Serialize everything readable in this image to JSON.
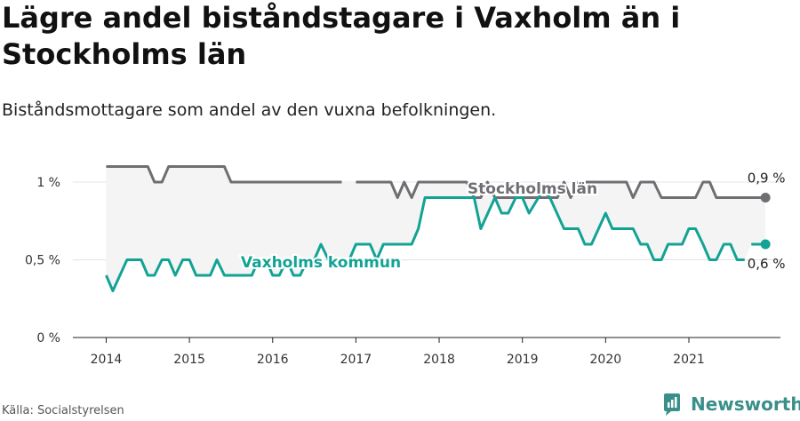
{
  "title": "Lägre andel biståndstagare i Vaxholm än i Stockholms län",
  "subtitle": "Biståndsmottagare som andel av den vuxna befolkningen.",
  "source": "Källa: Socialstyrelsen",
  "brand": {
    "name": "Newsworthy",
    "icon": "newsworthy-logo-icon",
    "color": "#3a8f8a"
  },
  "chart_data": {
    "type": "line",
    "title": "Lägre andel biståndstagare i Vaxholm än i Stockholms län",
    "subtitle": "Biståndsmottagare som andel av den vuxna befolkningen.",
    "xlabel": "",
    "ylabel": "",
    "ylim": [
      0,
      1.2
    ],
    "xlim": [
      2013.6,
      2022.1
    ],
    "x_ticks": [
      2014,
      2015,
      2016,
      2017,
      2018,
      2019,
      2020,
      2021
    ],
    "x_tick_labels": [
      "2014",
      "2015",
      "2016",
      "2017",
      "2018",
      "2019",
      "2020",
      "2021"
    ],
    "y_ticks": [
      0,
      0.5,
      1
    ],
    "y_tick_labels": [
      "0 %",
      "0,5 %",
      "1 %"
    ],
    "grid": "horizontal",
    "series": [
      {
        "name": "Stockholms län",
        "color": "#6f6e73",
        "end_label": "0,9 %",
        "points": [
          [
            2014.0,
            1.1
          ],
          [
            2014.5,
            1.1
          ],
          [
            2014.58,
            1.0
          ],
          [
            2014.67,
            1.0
          ],
          [
            2014.75,
            1.1
          ],
          [
            2015.42,
            1.1
          ],
          [
            2015.5,
            1.0
          ],
          [
            2016.83,
            1.0
          ],
          null,
          [
            2017.0,
            1.0
          ],
          [
            2017.42,
            1.0
          ],
          [
            2017.5,
            0.9
          ],
          [
            2017.58,
            1.0
          ],
          [
            2017.67,
            0.9
          ],
          [
            2017.75,
            1.0
          ],
          [
            2018.33,
            1.0
          ],
          [
            2018.42,
            0.9
          ],
          [
            2018.5,
            0.9
          ],
          [
            2018.58,
            1.0
          ],
          [
            2018.67,
            0.9
          ],
          [
            2019.42,
            0.9
          ],
          [
            2019.5,
            1.0
          ],
          [
            2019.58,
            0.9
          ],
          [
            2019.67,
            1.0
          ],
          [
            2020.25,
            1.0
          ],
          [
            2020.33,
            0.9
          ],
          [
            2020.42,
            1.0
          ],
          [
            2020.58,
            1.0
          ],
          [
            2020.67,
            0.9
          ],
          [
            2021.08,
            0.9
          ],
          [
            2021.17,
            1.0
          ],
          [
            2021.25,
            1.0
          ],
          [
            2021.33,
            0.9
          ],
          [
            2021.92,
            0.9
          ]
        ]
      },
      {
        "name": "Vaxholms kommun",
        "color": "#12a395",
        "end_label": "0,6 %",
        "points": [
          [
            2014.0,
            0.4
          ],
          [
            2014.08,
            0.3
          ],
          [
            2014.25,
            0.5
          ],
          [
            2014.42,
            0.5
          ],
          [
            2014.5,
            0.4
          ],
          [
            2014.58,
            0.4
          ],
          [
            2014.67,
            0.5
          ],
          [
            2014.75,
            0.5
          ],
          [
            2014.83,
            0.4
          ],
          [
            2014.92,
            0.5
          ],
          [
            2015.0,
            0.5
          ],
          [
            2015.08,
            0.4
          ],
          [
            2015.25,
            0.4
          ],
          [
            2015.33,
            0.5
          ],
          [
            2015.42,
            0.4
          ],
          [
            2015.75,
            0.4
          ],
          [
            2015.83,
            0.5
          ],
          [
            2015.92,
            0.5
          ],
          [
            2016.0,
            0.4
          ],
          [
            2016.08,
            0.4
          ],
          [
            2016.17,
            0.5
          ],
          [
            2016.25,
            0.4
          ],
          [
            2016.33,
            0.4
          ],
          [
            2016.42,
            0.5
          ],
          [
            2016.5,
            0.5
          ],
          [
            2016.58,
            0.6
          ],
          [
            2016.67,
            0.5
          ],
          [
            2016.83,
            0.5
          ],
          null,
          [
            2016.92,
            0.5
          ],
          [
            2017.0,
            0.6
          ],
          [
            2017.17,
            0.6
          ],
          [
            2017.25,
            0.5
          ],
          [
            2017.33,
            0.6
          ],
          [
            2017.67,
            0.6
          ],
          [
            2017.75,
            0.7
          ],
          [
            2017.83,
            0.9
          ],
          [
            2018.42,
            0.9
          ],
          [
            2018.5,
            0.7
          ],
          [
            2018.67,
            0.9
          ],
          [
            2018.75,
            0.8
          ],
          [
            2018.83,
            0.8
          ],
          [
            2018.92,
            0.9
          ],
          [
            2019.0,
            0.9
          ],
          [
            2019.08,
            0.8
          ],
          [
            2019.25,
            0.95
          ],
          [
            2019.33,
            0.9
          ],
          [
            2019.5,
            0.7
          ],
          [
            2019.67,
            0.7
          ],
          [
            2019.75,
            0.6
          ],
          [
            2019.83,
            0.6
          ],
          [
            2020.0,
            0.8
          ],
          [
            2020.08,
            0.7
          ],
          [
            2020.33,
            0.7
          ],
          [
            2020.42,
            0.6
          ],
          [
            2020.5,
            0.6
          ],
          [
            2020.58,
            0.5
          ],
          [
            2020.67,
            0.5
          ],
          [
            2020.75,
            0.6
          ],
          [
            2020.92,
            0.6
          ],
          [
            2021.0,
            0.7
          ],
          [
            2021.08,
            0.7
          ],
          [
            2021.17,
            0.6
          ],
          [
            2021.25,
            0.5
          ],
          [
            2021.33,
            0.5
          ],
          [
            2021.42,
            0.6
          ],
          [
            2021.5,
            0.6
          ],
          [
            2021.58,
            0.5
          ],
          [
            2021.67,
            0.5
          ],
          null,
          [
            2021.75,
            0.6
          ],
          [
            2021.92,
            0.6
          ]
        ]
      }
    ]
  }
}
